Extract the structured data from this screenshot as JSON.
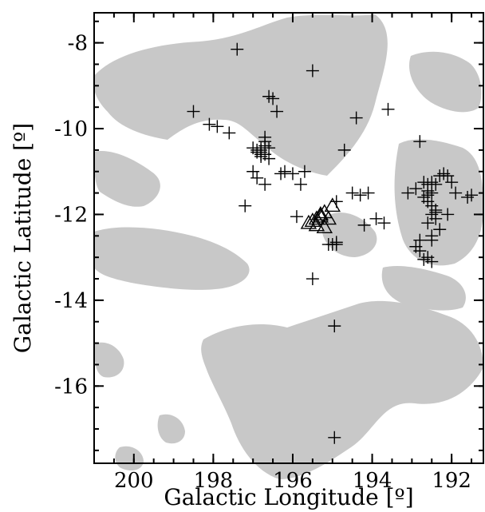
{
  "chart_data": {
    "type": "scatter",
    "title": "",
    "xlabel": "Galactic Longitude [º]",
    "ylabel": "Galactic Latitude [º]",
    "xlim": [
      201,
      191.2
    ],
    "ylim": [
      -17.8,
      -7.3
    ],
    "xticks": [
      200,
      198,
      196,
      194,
      192
    ],
    "yticks": [
      -8,
      -10,
      -12,
      -14,
      -16
    ],
    "xtick_labels": [
      "200",
      "198",
      "196",
      "194",
      "192"
    ],
    "ytick_labels": [
      "-8",
      "-10",
      "-12",
      "-14",
      "-16"
    ],
    "grid": false,
    "background_map": {
      "fill_color": "#c8c8c8"
    },
    "series": [
      {
        "marker": "plus",
        "color": "#000000",
        "x": [
          197.4,
          198.5,
          198.1,
          197.9,
          197.6,
          197.0,
          196.9,
          196.9,
          196.8,
          196.8,
          196.7,
          196.7,
          196.7,
          196.6,
          196.8,
          196.8,
          196.7,
          196.8,
          196.8,
          196.6,
          196.6,
          196.5,
          196.4,
          196.3,
          196.2,
          196.0,
          195.8,
          195.7,
          197.0,
          196.9,
          196.7,
          195.9,
          197.2,
          195.5,
          195.1,
          194.9,
          194.9,
          194.7,
          194.5,
          194.4,
          194.2,
          194.1,
          193.9,
          193.7,
          193.6,
          194.3,
          193.1,
          192.9,
          192.8,
          192.7,
          192.6,
          192.6,
          192.5,
          192.4,
          192.3,
          192.2,
          192.1,
          192.0,
          192.6,
          192.5,
          192.7,
          192.6,
          192.5,
          192.4,
          192.4,
          192.5,
          192.4,
          192.3,
          192.6,
          192.5,
          192.5,
          192.8,
          192.9,
          192.8,
          192.7,
          192.6,
          192.5,
          191.9,
          191.6,
          191.5,
          192.1,
          195.5,
          194.95,
          194.95,
          195.0,
          194.9
        ],
        "y": [
          -8.15,
          -9.6,
          -9.9,
          -9.95,
          -10.1,
          -10.45,
          -10.5,
          -10.55,
          -10.6,
          -10.45,
          -10.3,
          -10.2,
          -10.6,
          -10.45,
          -10.55,
          -10.65,
          -10.4,
          -10.5,
          -10.6,
          -10.7,
          -9.25,
          -9.3,
          -9.6,
          -11.05,
          -11.0,
          -11.05,
          -11.3,
          -11.0,
          -11.0,
          -11.15,
          -11.3,
          -12.05,
          -11.8,
          -8.65,
          -12.7,
          -12.65,
          -12.7,
          -10.5,
          -11.5,
          -9.75,
          -12.25,
          -11.5,
          -12.1,
          -12.2,
          -9.55,
          -11.55,
          -11.5,
          -11.4,
          -10.3,
          -11.25,
          -11.3,
          -11.45,
          -11.25,
          -11.3,
          -11.1,
          -11.05,
          -11.1,
          -11.25,
          -11.55,
          -11.5,
          -11.6,
          -11.7,
          -11.8,
          -11.9,
          -11.95,
          -12.0,
          -12.1,
          -12.35,
          -12.2,
          -12.5,
          -12.6,
          -12.6,
          -12.75,
          -12.85,
          -13.05,
          -13.0,
          -13.1,
          -11.5,
          -11.6,
          -11.55,
          -12.0,
          -13.5,
          -14.6,
          -17.2,
          -12.7,
          -11.7
        ]
      },
      {
        "marker": "triangle",
        "color": "#000000",
        "x": [
          195.0,
          195.2,
          195.3,
          195.4,
          195.5,
          195.6,
          195.3,
          195.1,
          195.4,
          195.2
        ],
        "y": [
          -11.8,
          -11.95,
          -12.05,
          -12.1,
          -12.15,
          -12.2,
          -12.0,
          -12.1,
          -12.25,
          -12.3
        ]
      }
    ]
  }
}
